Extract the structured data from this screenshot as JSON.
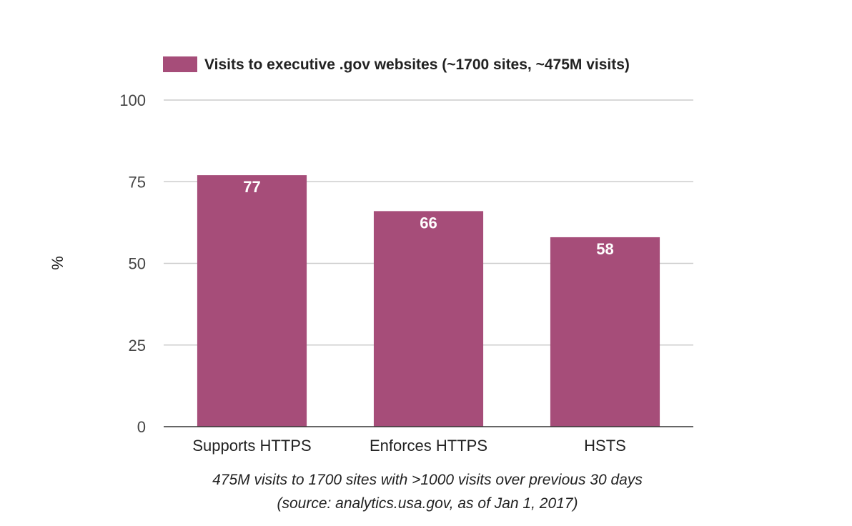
{
  "chart_data": {
    "type": "bar",
    "title": "",
    "categories": [
      "Supports HTTPS",
      "Enforces HTTPS",
      "HSTS"
    ],
    "series": [
      {
        "name": "Visits to executive .gov websites (~1700 sites, ~475M visits)",
        "values": [
          77,
          66,
          58
        ],
        "color": "#a64d79"
      }
    ],
    "data_labels": [
      "77",
      "66",
      "58"
    ],
    "ylabel": "%",
    "xlabel_line1": "475M visits to 1700 sites with >1000 visits over previous 30 days",
    "xlabel_line2": "(source: analytics.usa.gov, as of Jan 1, 2017)",
    "ylim": [
      0,
      100
    ],
    "yticks": [
      0,
      25,
      50,
      75,
      100
    ],
    "ytick_labels": [
      "0",
      "25",
      "50",
      "75",
      "100"
    ],
    "grid": true,
    "legend_position": "top",
    "colors": {
      "bar": "#a64d79",
      "gridline": "#cccccc",
      "baseline": "#333333"
    }
  }
}
